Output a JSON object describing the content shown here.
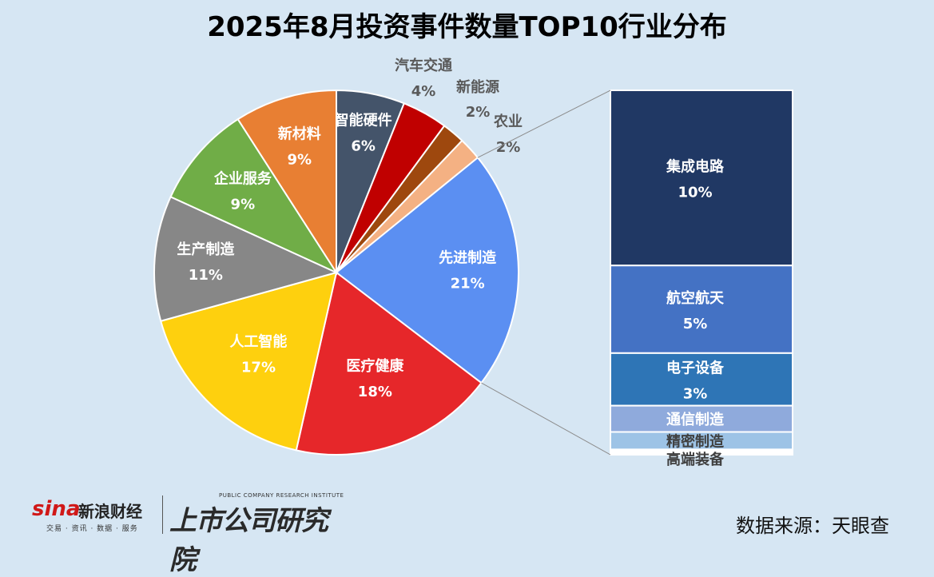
{
  "title": "2025年8月投资事件数量TOP10行业分布",
  "source": "数据来源：天眼查",
  "logos": {
    "sina_brand": "sina",
    "sina_name": "新浪财经",
    "sina_sub": "交易 · 资讯 · 数据 · 服务",
    "institute_en": "PUBLIC COMPANY RESEARCH INSTITUTE",
    "institute_cn": "上市公司研究院"
  },
  "chart_data": {
    "type": "pie",
    "subtype": "bar-of-pie",
    "pie": {
      "slices": [
        {
          "label": "智能硬件",
          "value": 6,
          "pct": "6%",
          "color": "#44546a"
        },
        {
          "label": "汽车交通",
          "value": 4,
          "pct": "4%",
          "color": "#c00000"
        },
        {
          "label": "新能源",
          "value": 2,
          "pct": "2%",
          "color": "#9e480e"
        },
        {
          "label": "农业",
          "value": 2,
          "pct": "2%",
          "color": "#f4b183"
        },
        {
          "label": "先进制造",
          "value": 21,
          "pct": "21%",
          "color": "#5b8ff2"
        },
        {
          "label": "医疗健康",
          "value": 18,
          "pct": "18%",
          "color": "#e6272a"
        },
        {
          "label": "人工智能",
          "value": 17,
          "pct": "17%",
          "color": "#fed00e"
        },
        {
          "label": "生产制造",
          "value": 11,
          "pct": "11%",
          "color": "#878787"
        },
        {
          "label": "企业服务",
          "value": 9,
          "pct": "9%",
          "color": "#70ad47"
        },
        {
          "label": "新材料",
          "value": 9,
          "pct": "9%",
          "color": "#e87f33"
        }
      ]
    },
    "breakdown_of": "先进制造",
    "bar": {
      "segments": [
        {
          "label": "集成电路",
          "value": 10,
          "pct": "10%",
          "color": "#203864"
        },
        {
          "label": "航空航天",
          "value": 5,
          "pct": "5%",
          "color": "#4472c4"
        },
        {
          "label": "电子设备",
          "value": 3,
          "pct": "3%",
          "color": "#2e75b6"
        },
        {
          "label": "通信制造",
          "value": 1.5,
          "pct": "",
          "color": "#8faadc"
        },
        {
          "label": "精密制造",
          "value": 1,
          "pct": "",
          "color": "#9dc3e6"
        },
        {
          "label": "高端装备",
          "value": 0.3,
          "pct": "",
          "color": "#ffffff"
        }
      ]
    }
  }
}
